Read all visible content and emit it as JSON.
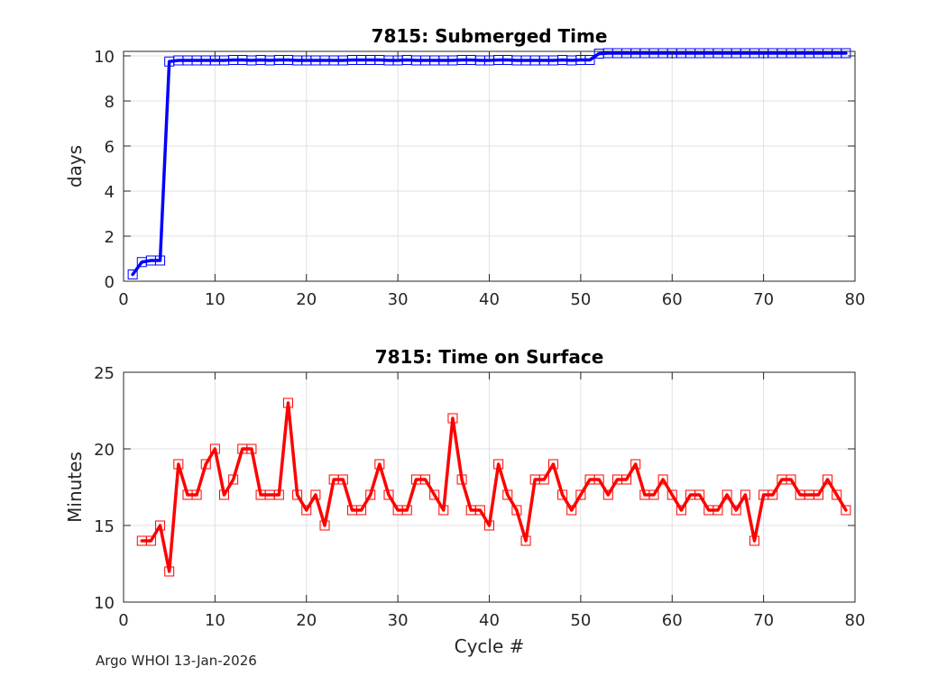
{
  "footer": "Argo WHOI 13-Jan-2026",
  "chart_data": [
    {
      "type": "line",
      "title": "7815: Submerged Time",
      "xlabel": "",
      "ylabel": "days",
      "xlim": [
        0,
        80
      ],
      "ylim": [
        0,
        10.2
      ],
      "xticks": [
        0,
        10,
        20,
        30,
        40,
        50,
        60,
        70,
        80
      ],
      "yticks": [
        0,
        2,
        4,
        6,
        8,
        10
      ],
      "grid": true,
      "color": "#0000ff",
      "marker": "square",
      "series": [
        {
          "name": "Submerged Time",
          "x": [
            1,
            2,
            3,
            4,
            5,
            6,
            7,
            8,
            9,
            10,
            11,
            12,
            13,
            14,
            15,
            16,
            17,
            18,
            19,
            20,
            21,
            22,
            23,
            24,
            25,
            26,
            27,
            28,
            29,
            30,
            31,
            32,
            33,
            34,
            35,
            36,
            37,
            38,
            39,
            40,
            41,
            42,
            43,
            44,
            45,
            46,
            47,
            48,
            49,
            50,
            51,
            52,
            53,
            54,
            55,
            56,
            57,
            58,
            59,
            60,
            61,
            62,
            63,
            64,
            65,
            66,
            67,
            68,
            69,
            70,
            71,
            72,
            73,
            74,
            75,
            76,
            77,
            78,
            79
          ],
          "y": [
            0.3,
            0.85,
            0.92,
            0.92,
            9.75,
            9.8,
            9.8,
            9.8,
            9.8,
            9.8,
            9.8,
            9.82,
            9.82,
            9.8,
            9.82,
            9.8,
            9.82,
            9.82,
            9.8,
            9.8,
            9.8,
            9.8,
            9.8,
            9.8,
            9.82,
            9.82,
            9.82,
            9.82,
            9.8,
            9.8,
            9.82,
            9.8,
            9.8,
            9.8,
            9.8,
            9.8,
            9.82,
            9.82,
            9.8,
            9.8,
            9.82,
            9.82,
            9.8,
            9.8,
            9.8,
            9.8,
            9.8,
            9.82,
            9.8,
            9.82,
            9.82,
            10.1,
            10.12,
            10.12,
            10.12,
            10.12,
            10.12,
            10.12,
            10.12,
            10.12,
            10.12,
            10.12,
            10.12,
            10.12,
            10.12,
            10.12,
            10.12,
            10.12,
            10.12,
            10.12,
            10.12,
            10.12,
            10.12,
            10.12,
            10.12,
            10.12,
            10.12,
            10.12,
            10.12
          ]
        }
      ]
    },
    {
      "type": "line",
      "title": "7815: Time on Surface",
      "xlabel": "Cycle #",
      "ylabel": "Minutes",
      "xlim": [
        0,
        80
      ],
      "ylim": [
        10,
        25
      ],
      "xticks": [
        0,
        10,
        20,
        30,
        40,
        50,
        60,
        70,
        80
      ],
      "yticks": [
        10,
        15,
        20,
        25
      ],
      "grid": true,
      "color": "#ff0000",
      "marker": "square",
      "series": [
        {
          "name": "Time on Surface",
          "x": [
            2,
            3,
            4,
            5,
            6,
            7,
            8,
            9,
            10,
            11,
            12,
            13,
            14,
            15,
            16,
            17,
            18,
            19,
            20,
            21,
            22,
            23,
            24,
            25,
            26,
            27,
            28,
            29,
            30,
            31,
            32,
            33,
            34,
            35,
            36,
            37,
            38,
            39,
            40,
            41,
            42,
            43,
            44,
            45,
            46,
            47,
            48,
            49,
            50,
            51,
            52,
            53,
            54,
            55,
            56,
            57,
            58,
            59,
            60,
            61,
            62,
            63,
            64,
            65,
            66,
            67,
            68,
            69,
            70,
            71,
            72,
            73,
            74,
            75,
            76,
            77,
            78,
            79
          ],
          "y": [
            14,
            14,
            15,
            12,
            19,
            17,
            17,
            19,
            20,
            17,
            18,
            20,
            20,
            17,
            17,
            17,
            23,
            17,
            16,
            17,
            15,
            18,
            18,
            16,
            16,
            17,
            19,
            17,
            16,
            16,
            18,
            18,
            17,
            16,
            22,
            18,
            16,
            16,
            15,
            19,
            17,
            16,
            14,
            18,
            18,
            19,
            17,
            16,
            17,
            18,
            18,
            17,
            18,
            18,
            19,
            17,
            17,
            18,
            17,
            16,
            17,
            17,
            16,
            16,
            17,
            16,
            17,
            14,
            17,
            17,
            18,
            18,
            17,
            17,
            17,
            18,
            17,
            16
          ]
        }
      ]
    }
  ]
}
